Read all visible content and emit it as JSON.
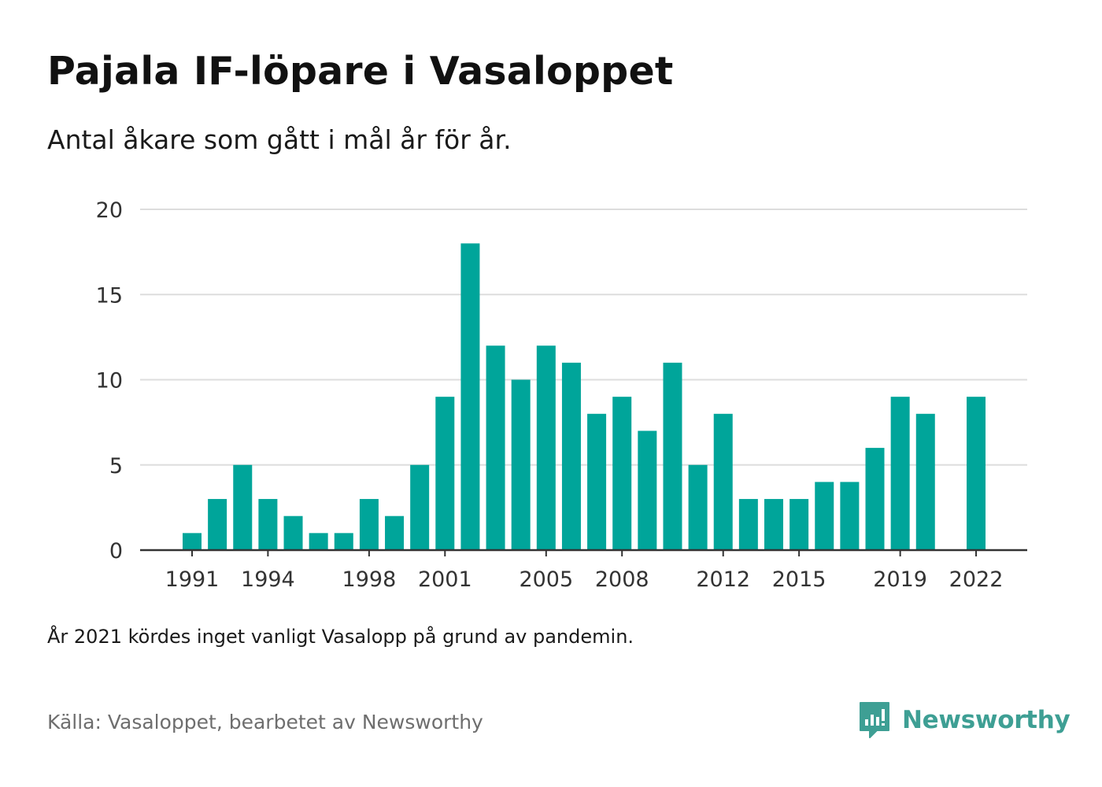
{
  "title": "Pajala IF-löpare i Vasaloppet",
  "subtitle": "Antal åkare som gått i mål år för år.",
  "note": "År 2021 kördes inget vanligt Vasalopp på grund av pandemin.",
  "source": "Källa: Vasaloppet, bearbetet av Newsworthy",
  "logo": {
    "name": "Newsworthy",
    "icon": "newsworthy-logo-icon"
  },
  "colors": {
    "bar": "#00a59a",
    "grid": "#dddddd",
    "axis": "#333333",
    "brand": "#3e9f94"
  },
  "chart_data": {
    "type": "bar",
    "title": "Pajala IF-löpare i Vasaloppet",
    "subtitle": "Antal åkare som gått i mål år för år.",
    "xlabel": "",
    "ylabel": "",
    "categories": [
      1991,
      1992,
      1993,
      1994,
      1995,
      1996,
      1997,
      1998,
      1999,
      2000,
      2001,
      2002,
      2003,
      2004,
      2005,
      2006,
      2007,
      2008,
      2009,
      2010,
      2011,
      2012,
      2013,
      2014,
      2015,
      2016,
      2017,
      2018,
      2019,
      2020,
      2021,
      2022
    ],
    "values": [
      1,
      3,
      5,
      3,
      2,
      1,
      1,
      3,
      2,
      5,
      9,
      18,
      12,
      10,
      12,
      11,
      8,
      9,
      7,
      11,
      5,
      8,
      3,
      3,
      3,
      4,
      4,
      6,
      9,
      8,
      null,
      9
    ],
    "ylim": [
      0,
      20
    ],
    "yticks": [
      0,
      5,
      10,
      15,
      20
    ],
    "xticks": [
      "1991",
      "1994",
      "1998",
      "2001",
      "2005",
      "2008",
      "2012",
      "2015",
      "2019",
      "2022"
    ],
    "grid": true,
    "legend": "none"
  }
}
